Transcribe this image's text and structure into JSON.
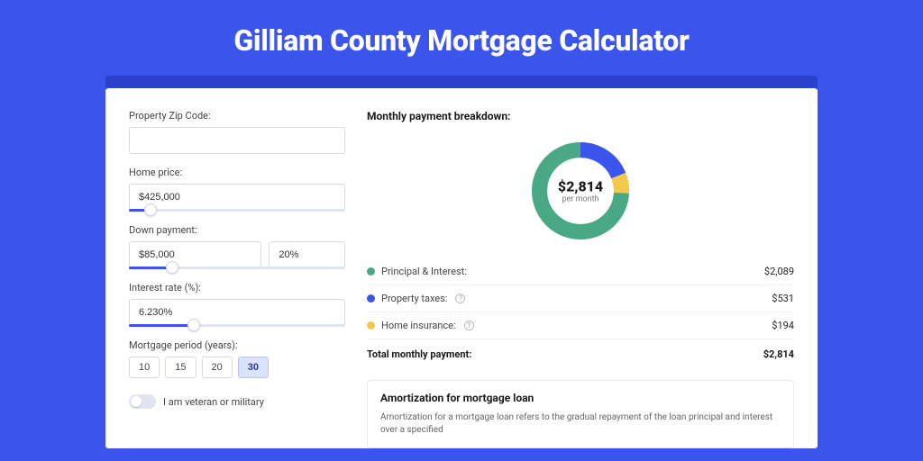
{
  "title": "Gilliam County Mortgage Calculator",
  "colors": {
    "page_bg": "#3b54ec",
    "shadow_bar": "#2b42cc",
    "card_bg": "#ffffff",
    "accent": "#3b54ec",
    "text": "#1a1a1a",
    "muted": "#777777",
    "border": "#d8dbe3"
  },
  "form": {
    "zip": {
      "label": "Property Zip Code:",
      "value": ""
    },
    "home_price": {
      "label": "Home price:",
      "value": "$425,000",
      "slider_pct": 10
    },
    "down_payment": {
      "label": "Down payment:",
      "value": "$85,000",
      "pct": "20%",
      "slider_pct": 20
    },
    "interest_rate": {
      "label": "Interest rate (%):",
      "value": "6.230%",
      "slider_pct": 30
    },
    "mortgage_period": {
      "label": "Mortgage period (years):",
      "options": [
        "10",
        "15",
        "20",
        "30"
      ],
      "selected": "30"
    },
    "veteran": {
      "label": "I am veteran or military",
      "on": false
    }
  },
  "breakdown": {
    "title": "Monthly payment breakdown:",
    "donut": {
      "value": "$2,814",
      "sub": "per month",
      "slices": [
        {
          "label": "Principal & Interest:",
          "amount": "$2,089",
          "color": "#4aa985",
          "fraction": 0.742
        },
        {
          "label": "Property taxes:",
          "amount": "$531",
          "color": "#3b54ec",
          "fraction": 0.189,
          "info": true
        },
        {
          "label": "Home insurance:",
          "amount": "$194",
          "color": "#f2c94c",
          "fraction": 0.069,
          "info": true
        }
      ],
      "ring_width": 16
    },
    "total": {
      "label": "Total monthly payment:",
      "amount": "$2,814"
    }
  },
  "amort": {
    "title": "Amortization for mortgage loan",
    "text": "Amortization for a mortgage loan refers to the gradual repayment of the loan principal and interest over a specified"
  }
}
